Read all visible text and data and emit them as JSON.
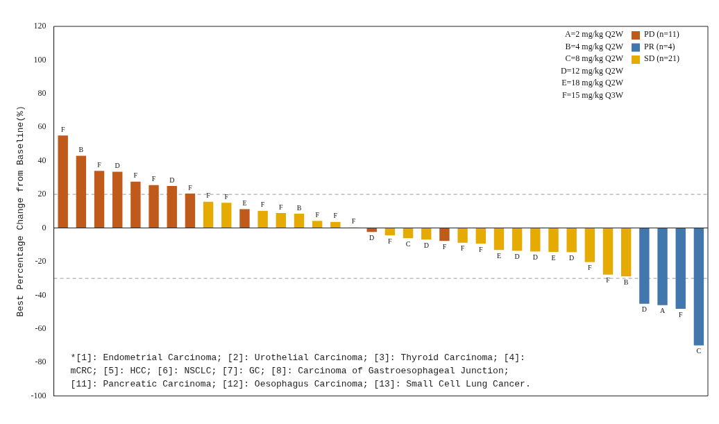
{
  "chart_data": {
    "type": "bar",
    "ylabel": "Best Percentage Change from Baseline(%)",
    "categories": [
      null,
      null,
      null,
      null,
      null,
      null,
      null,
      null,
      null,
      null,
      null,
      null,
      null,
      null,
      null,
      null,
      null,
      null,
      null,
      null,
      null,
      null,
      null,
      null,
      null,
      null,
      null,
      null,
      null,
      null,
      null,
      null,
      null,
      null,
      null,
      null
    ],
    "series": [
      {
        "name": "PD (n=11)",
        "color": "#c05a1a",
        "values": [
          55,
          43,
          34,
          33.5,
          27.6,
          25.5,
          25,
          20.5,
          null,
          null,
          11.2,
          null,
          null,
          null,
          null,
          null,
          null,
          -2.4,
          null,
          null,
          null,
          -7.7,
          null,
          null,
          null,
          null,
          null,
          null,
          null,
          null,
          null,
          null,
          null,
          null,
          null,
          null
        ],
        "value_labels": [
          "F",
          "B",
          "F",
          "D",
          "F",
          "F",
          "D",
          "F",
          null,
          null,
          "E",
          null,
          null,
          null,
          null,
          null,
          null,
          "D",
          null,
          null,
          null,
          "F",
          null,
          null,
          null,
          null,
          null,
          null,
          null,
          null,
          null,
          null,
          null,
          null,
          null,
          null
        ]
      },
      {
        "name": "PR (n=4)",
        "color": "#4277ae",
        "values": [
          null,
          null,
          null,
          null,
          null,
          null,
          null,
          null,
          null,
          null,
          null,
          null,
          null,
          null,
          null,
          null,
          null,
          null,
          null,
          null,
          null,
          null,
          null,
          null,
          null,
          null,
          null,
          null,
          null,
          null,
          null,
          null,
          -45.1,
          -45.9,
          -48.1,
          -69.9
        ],
        "value_labels": [
          null,
          null,
          null,
          null,
          null,
          null,
          null,
          null,
          null,
          null,
          null,
          null,
          null,
          null,
          null,
          null,
          null,
          null,
          null,
          null,
          null,
          null,
          null,
          null,
          null,
          null,
          null,
          null,
          null,
          null,
          null,
          null,
          "D",
          "A",
          "F",
          "C"
        ]
      },
      {
        "name": "SD (n=21)",
        "color": "#e5ab03",
        "values": [
          null,
          null,
          null,
          null,
          null,
          null,
          null,
          null,
          15.6,
          15,
          null,
          10.2,
          8.9,
          8.5,
          4.2,
          3.6,
          0.3,
          null,
          -4.4,
          -6.1,
          -6.9,
          null,
          -8.8,
          -9.3,
          -13.1,
          -13.6,
          -14,
          -14.3,
          -14.4,
          -20.3,
          -27.8,
          -28.8,
          null,
          null,
          null,
          null
        ],
        "value_labels": [
          null,
          null,
          null,
          null,
          null,
          null,
          null,
          null,
          "F",
          "F",
          null,
          "F",
          "F",
          "B",
          "F",
          "F",
          "F",
          null,
          "F",
          "C",
          "D",
          null,
          "F",
          "F",
          "E",
          "D",
          "D",
          "E",
          "D",
          "F",
          "F",
          "B",
          null,
          null,
          null,
          null
        ]
      }
    ],
    "ylim": [
      -100,
      120
    ],
    "yticks": [
      -100,
      -80,
      -60,
      -40,
      -20,
      0,
      20,
      40,
      60,
      80,
      100,
      120
    ],
    "grid": false,
    "legend": "top right",
    "ref_lines": [
      {
        "axis": "y",
        "value": 20,
        "line_style": "dashed",
        "color": "#999999"
      },
      {
        "axis": "y",
        "value": -30,
        "line_style": "dashed",
        "color": "#999999"
      }
    ],
    "annotations": [
      "A=2 mg/kg Q2W",
      "B=4 mg/kg Q2W",
      "C=8 mg/kg Q2W",
      "D=12 mg/kg Q2W",
      "E=18 mg/kg Q2W",
      "F=15 mg/kg Q3W",
      "*[1]: Endometrial Carcinoma; [2]: Urothelial Carcinoma; [3]: Thyroid Carcinoma; [4]:\nmCRC; [5]: HCC; [6]: NSCLC; [7]: GC; [8]: Carcinoma of Gastroesophageal Junction;\n[11]: Pancreatic Carcinoma; [12]: Oesophagus Carcinoma; [13]: Small Cell Lung Cancer."
    ]
  }
}
